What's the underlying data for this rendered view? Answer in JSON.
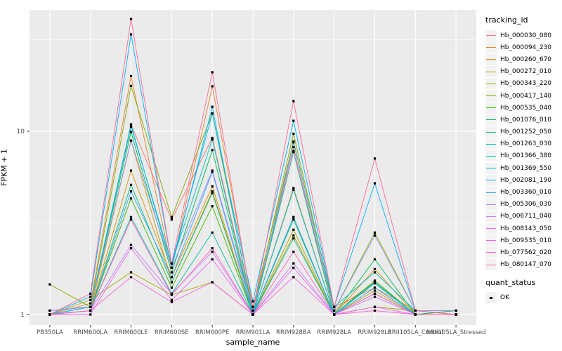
{
  "legend": {
    "tracking_title": "tracking_id",
    "quant_title": "quant_status",
    "quant_items": [
      {
        "label": "OK"
      }
    ]
  },
  "chart_data": {
    "type": "line",
    "title": "",
    "xlabel": "sample_name",
    "ylabel": "FPKM + 1",
    "y_scale": "log10",
    "ylim": [
      0.88,
      46
    ],
    "y_ticks": [
      1,
      10
    ],
    "y_minor_ticks": [
      3.1623,
      31.623
    ],
    "grid": true,
    "legend_position": "right",
    "panel_background": "#EBEBEB",
    "grid_color": "#FFFFFF",
    "point_shape": "filled-square",
    "point_color": "#000000",
    "quant_status_value": "OK",
    "categories": [
      "PB350LA",
      "RRIM600LA",
      "RRIM600LE",
      "RRIM600SE",
      "RRIM600PE",
      "RRIM901LA",
      "RRIM928BA",
      "RRIM928LA",
      "RRIM928LE",
      "RRII105LA_Control",
      "RRII105LA_Stressed"
    ],
    "series": [
      {
        "name": "Hb_000030_080",
        "color": "#F8766D",
        "values": [
          1.05,
          1.1,
          10.9,
          3.3,
          9.2,
          1.05,
          8.2,
          1.05,
          1.5,
          1.0,
          1.05
        ]
      },
      {
        "name": "Hb_000094_230",
        "color": "#EA8331",
        "values": [
          1.0,
          1.15,
          20.0,
          1.8,
          17.6,
          1.1,
          8.8,
          1.1,
          1.4,
          1.05,
          1.0
        ]
      },
      {
        "name": "Hb_000260_670",
        "color": "#D89000",
        "values": [
          1.0,
          1.05,
          6.1,
          1.6,
          5.0,
          1.0,
          4.9,
          1.0,
          1.77,
          1.0,
          1.0
        ]
      },
      {
        "name": "Hb_000272_010",
        "color": "#C09B00",
        "values": [
          1.0,
          1.05,
          8.9,
          1.5,
          4.7,
          1.0,
          2.7,
          1.0,
          1.35,
          1.0,
          1.0
        ]
      },
      {
        "name": "Hb_000343_220",
        "color": "#A3A500",
        "values": [
          1.0,
          1.2,
          1.7,
          1.28,
          1.5,
          1.0,
          2.9,
          1.0,
          1.1,
          1.05,
          1.0
        ]
      },
      {
        "name": "Hb_000417_140",
        "color": "#7CAE00",
        "values": [
          1.46,
          1.1,
          17.7,
          3.4,
          12.5,
          1.05,
          9.7,
          1.05,
          2.8,
          1.05,
          1.0
        ]
      },
      {
        "name": "Hb_000535_040",
        "color": "#39B600",
        "values": [
          1.0,
          1.05,
          4.3,
          1.4,
          3.9,
          1.0,
          3.4,
          1.0,
          1.53,
          1.0,
          1.0
        ]
      },
      {
        "name": "Hb_001076_010",
        "color": "#00BB4E",
        "values": [
          1.0,
          1.1,
          9.9,
          1.7,
          7.9,
          1.0,
          7.7,
          1.0,
          2.0,
          1.0,
          1.05
        ]
      },
      {
        "name": "Hb_001252_050",
        "color": "#00BF7D",
        "values": [
          1.0,
          1.05,
          5.1,
          1.5,
          4.6,
          1.0,
          3.3,
          1.0,
          1.5,
          1.0,
          1.0
        ]
      },
      {
        "name": "Hb_001263_030",
        "color": "#00C1A3",
        "values": [
          1.0,
          1.05,
          3.4,
          1.3,
          2.8,
          1.0,
          2.6,
          1.0,
          1.3,
          1.0,
          1.0
        ]
      },
      {
        "name": "Hb_001366_380",
        "color": "#00BFC4",
        "values": [
          1.05,
          1.1,
          10.6,
          1.9,
          9.0,
          1.0,
          8.7,
          1.1,
          1.7,
          1.05,
          1.05
        ]
      },
      {
        "name": "Hb_001369_550",
        "color": "#00BAE0",
        "values": [
          1.0,
          1.1,
          10.9,
          1.8,
          13.6,
          1.0,
          4.8,
          1.0,
          1.48,
          1.0,
          1.0
        ]
      },
      {
        "name": "Hb_002081_190",
        "color": "#00B0F6",
        "values": [
          1.0,
          1.25,
          33.8,
          1.9,
          12.5,
          1.18,
          11.4,
          1.1,
          5.2,
          1.05,
          1.05
        ]
      },
      {
        "name": "Hb_003360_010",
        "color": "#35A2FF",
        "values": [
          1.0,
          1.05,
          4.7,
          1.6,
          6.0,
          1.0,
          3.4,
          1.0,
          1.4,
          1.0,
          1.0
        ]
      },
      {
        "name": "Hb_005306_030",
        "color": "#9590FF",
        "values": [
          1.05,
          1.1,
          8.9,
          1.8,
          6.1,
          1.05,
          7.8,
          1.05,
          2.7,
          1.05,
          1.05
        ]
      },
      {
        "name": "Hb_006711_040",
        "color": "#C77CFF",
        "values": [
          1.0,
          1.05,
          2.4,
          1.3,
          2.2,
          1.0,
          1.9,
          1.0,
          1.25,
          1.0,
          1.0
        ]
      },
      {
        "name": "Hb_008143_050",
        "color": "#E76BF3",
        "values": [
          1.0,
          1.0,
          2.3,
          1.2,
          2.0,
          1.0,
          1.8,
          1.0,
          1.1,
          1.0,
          1.0
        ]
      },
      {
        "name": "Hb_009535_010",
        "color": "#FA62DB",
        "values": [
          1.0,
          1.05,
          1.6,
          1.17,
          1.5,
          1.0,
          1.6,
          1.0,
          1.05,
          1.0,
          1.0
        ]
      },
      {
        "name": "Hb_077562_020",
        "color": "#FF62BC",
        "values": [
          1.0,
          1.05,
          3.3,
          1.28,
          2.3,
          1.0,
          2.2,
          1.0,
          1.3,
          1.0,
          1.0
        ]
      },
      {
        "name": "Hb_080147_070",
        "color": "#FF6A98",
        "values": [
          1.0,
          1.3,
          41.0,
          1.9,
          21.0,
          1.05,
          14.6,
          1.1,
          7.1,
          1.05,
          1.0
        ]
      }
    ]
  }
}
